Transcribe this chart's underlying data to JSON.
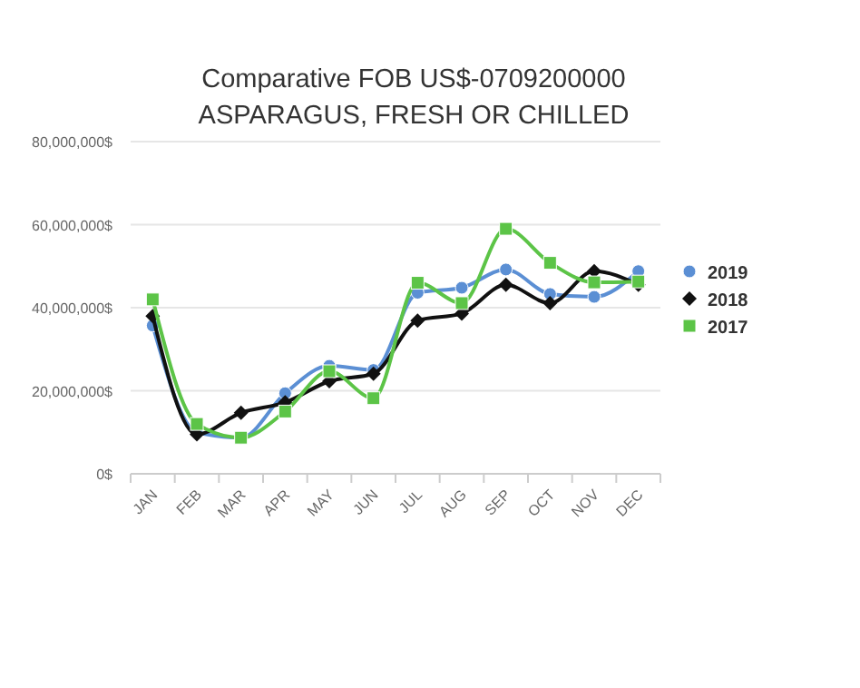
{
  "chart_data": {
    "type": "line",
    "title": "Comparative FOB US$-0709200000 ASPARAGUS, FRESH OR CHILLED",
    "categories": [
      "JAN",
      "FEB",
      "MAR",
      "APR",
      "MAY",
      "JUN",
      "JUL",
      "AUG",
      "SEP",
      "OCT",
      "NOV",
      "DEC"
    ],
    "series": [
      {
        "name": "2019",
        "color": "#5b8fd4",
        "marker": "circle",
        "values": [
          35700000,
          10000000,
          8700000,
          19400000,
          26000000,
          25000000,
          43600000,
          44800000,
          49200000,
          43300000,
          42600000,
          48800000
        ]
      },
      {
        "name": "2018",
        "color": "#111111",
        "marker": "diamond",
        "values": [
          38000000,
          9500000,
          14700000,
          17200000,
          22300000,
          24100000,
          36900000,
          38600000,
          45500000,
          41100000,
          48800000,
          45500000
        ]
      },
      {
        "name": "2017",
        "color": "#5cc447",
        "marker": "square",
        "values": [
          42000000,
          12000000,
          8700000,
          15000000,
          24700000,
          18200000,
          46000000,
          41100000,
          59000000,
          50800000,
          46100000,
          46300000
        ]
      }
    ],
    "ylim": [
      0,
      80000000
    ],
    "yticks": [
      {
        "value": 0,
        "label": "0$"
      },
      {
        "value": 20000000,
        "label": "20,000,000$"
      },
      {
        "value": 40000000,
        "label": "40,000,000$"
      },
      {
        "value": 60000000,
        "label": "60,000,000$"
      },
      {
        "value": 80000000,
        "label": "80,000,000$"
      }
    ],
    "grid": "y",
    "legend": "right"
  }
}
